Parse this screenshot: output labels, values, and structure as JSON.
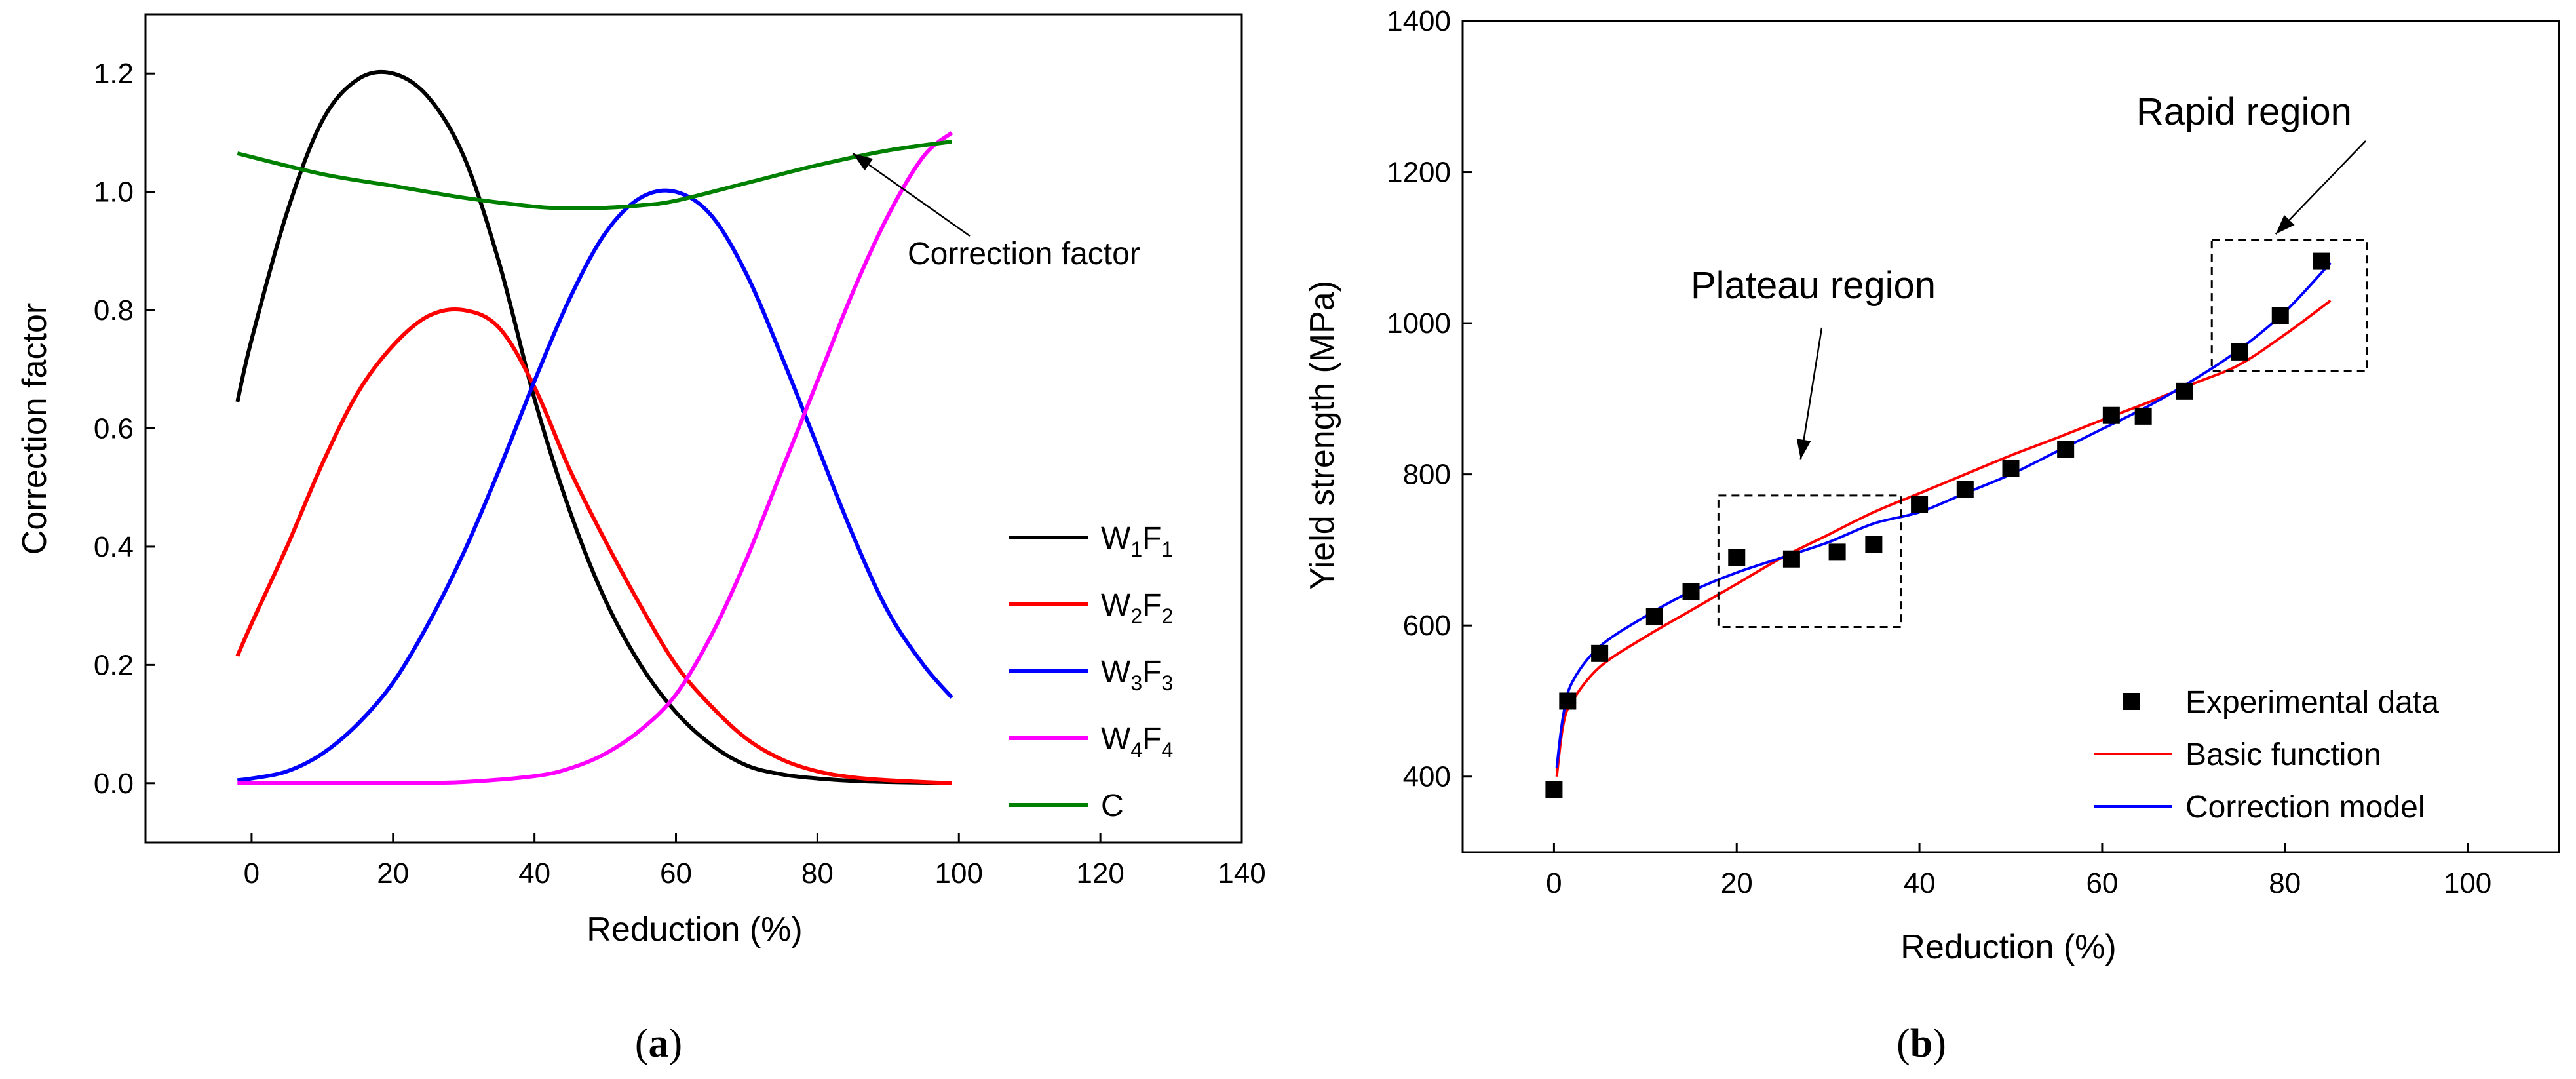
{
  "figure": {
    "panel_a_label": "(a)",
    "panel_b_label": "(b)",
    "panel_a_letter": "a",
    "panel_b_letter": "b"
  },
  "chart_data": [
    {
      "type": "line",
      "panel": "a",
      "xlabel": "Reduction (%)",
      "ylabel": "Correction factor",
      "xlim": [
        -15,
        140
      ],
      "ylim": [
        -0.1,
        1.3
      ],
      "xticks": [
        0,
        20,
        40,
        60,
        80,
        100,
        120,
        140
      ],
      "yticks": [
        0.0,
        0.2,
        0.4,
        0.6,
        0.8,
        1.0,
        1.2
      ],
      "xtick_labels": [
        "0",
        "20",
        "40",
        "60",
        "80",
        "100",
        "120",
        "140"
      ],
      "ytick_labels": [
        "0.0",
        "0.2",
        "0.4",
        "0.6",
        "0.8",
        "1.0",
        "1.2"
      ],
      "grid": false,
      "legend_position": "bottom-right",
      "series": [
        {
          "name": "W1F1",
          "legend": {
            "base1": "W",
            "sub1": "1",
            "base2": "F",
            "sub2": "1"
          },
          "color": "#000000",
          "x": [
            -2,
            0,
            5,
            10,
            15,
            20,
            25,
            30,
            35,
            40,
            45,
            50,
            55,
            60,
            65,
            70,
            75,
            80,
            85,
            90,
            95,
            99
          ],
          "y": [
            0.645,
            0.75,
            0.965,
            1.12,
            1.19,
            1.2,
            1.16,
            1.06,
            0.88,
            0.65,
            0.46,
            0.31,
            0.2,
            0.12,
            0.065,
            0.03,
            0.015,
            0.008,
            0.004,
            0.002,
            0.001,
            0.0
          ]
        },
        {
          "name": "W2F2",
          "legend": {
            "base1": "W",
            "sub1": "2",
            "base2": "F",
            "sub2": "2"
          },
          "color": "#ff0000",
          "x": [
            -2,
            0,
            5,
            10,
            15,
            20,
            25,
            30,
            35,
            40,
            45,
            50,
            55,
            60,
            65,
            70,
            75,
            80,
            85,
            90,
            95,
            99
          ],
          "y": [
            0.215,
            0.27,
            0.4,
            0.54,
            0.66,
            0.74,
            0.79,
            0.8,
            0.77,
            0.67,
            0.53,
            0.41,
            0.3,
            0.2,
            0.13,
            0.075,
            0.04,
            0.02,
            0.01,
            0.005,
            0.002,
            0.0
          ]
        },
        {
          "name": "W3F3",
          "legend": {
            "base1": "W",
            "sub1": "3",
            "base2": "F",
            "sub2": "3"
          },
          "color": "#0000ff",
          "x": [
            -2,
            0,
            5,
            10,
            15,
            20,
            25,
            30,
            35,
            40,
            45,
            50,
            55,
            60,
            65,
            70,
            75,
            80,
            85,
            90,
            95,
            99
          ],
          "y": [
            0.005,
            0.008,
            0.02,
            0.05,
            0.1,
            0.17,
            0.27,
            0.39,
            0.53,
            0.68,
            0.82,
            0.93,
            0.99,
            1.0,
            0.96,
            0.86,
            0.72,
            0.57,
            0.42,
            0.29,
            0.2,
            0.145
          ]
        },
        {
          "name": "W4F4",
          "legend": {
            "base1": "W",
            "sub1": "4",
            "base2": "F",
            "sub2": "4"
          },
          "color": "#ff00ff",
          "x": [
            -2,
            0,
            10,
            20,
            30,
            40,
            45,
            50,
            55,
            60,
            65,
            70,
            75,
            80,
            85,
            90,
            95,
            99
          ],
          "y": [
            0.0,
            0.0,
            0.0,
            0.0,
            0.002,
            0.012,
            0.025,
            0.05,
            0.09,
            0.15,
            0.25,
            0.38,
            0.53,
            0.68,
            0.83,
            0.96,
            1.06,
            1.1
          ]
        },
        {
          "name": "C",
          "legend": {
            "base1": "C",
            "sub1": "",
            "base2": "",
            "sub2": ""
          },
          "color": "#008000",
          "x": [
            -2,
            10,
            20,
            30,
            40,
            45,
            50,
            55,
            60,
            70,
            80,
            90,
            99
          ],
          "y": [
            1.065,
            1.03,
            1.01,
            0.99,
            0.975,
            0.972,
            0.973,
            0.977,
            0.985,
            1.015,
            1.045,
            1.07,
            1.085
          ]
        }
      ],
      "annotations": [
        {
          "text": "Correction factor",
          "arrow_to": [
            85,
            1.065
          ],
          "text_at": [
            96,
            0.9
          ]
        }
      ]
    },
    {
      "type": "line+scatter",
      "panel": "b",
      "xlabel": "Reduction (%)",
      "ylabel": "Yield strength (MPa)",
      "xlim": [
        -10,
        110
      ],
      "ylim": [
        300,
        1400
      ],
      "xticks": [
        0,
        20,
        40,
        60,
        80,
        100
      ],
      "yticks": [
        400,
        600,
        800,
        1000,
        1200,
        1400
      ],
      "xtick_labels": [
        "0",
        "20",
        "40",
        "60",
        "80",
        "100"
      ],
      "ytick_labels": [
        "400",
        "600",
        "800",
        "1000",
        "1200",
        "1400"
      ],
      "grid": false,
      "legend_position": "bottom-right",
      "legend": [
        "Experimental data",
        "Basic function",
        "Correction model"
      ],
      "experimental": {
        "name": "Experimental data",
        "color": "#000000",
        "x": [
          0,
          1.5,
          5,
          11,
          15,
          20,
          26,
          31,
          35,
          40,
          45,
          50,
          56,
          61,
          64.5,
          69,
          75,
          79.5,
          84
        ],
        "y": [
          383,
          500,
          563,
          612,
          645,
          690,
          688,
          697,
          707,
          760,
          780,
          808,
          833,
          878,
          877,
          910,
          962,
          1010,
          1082
        ]
      },
      "series": [
        {
          "name": "Basic function",
          "color": "#ff0000",
          "x": [
            0.3,
            1,
            2,
            5,
            10,
            15,
            20,
            25,
            30,
            35,
            40,
            45,
            50,
            55,
            60,
            65,
            70,
            75,
            80,
            85
          ],
          "y": [
            400,
            468,
            500,
            545,
            585,
            620,
            655,
            690,
            720,
            750,
            775,
            800,
            825,
            848,
            872,
            895,
            920,
            945,
            985,
            1030
          ]
        },
        {
          "name": "Correction model",
          "color": "#0000ff",
          "x": [
            0.3,
            1,
            2,
            5,
            10,
            15,
            20,
            25,
            30,
            35,
            40,
            45,
            50,
            55,
            60,
            65,
            70,
            75,
            80,
            85
          ],
          "y": [
            412,
            480,
            525,
            572,
            612,
            645,
            670,
            690,
            710,
            735,
            750,
            775,
            800,
            830,
            860,
            890,
            925,
            965,
            1015,
            1080
          ]
        }
      ],
      "annotations": [
        {
          "text": "Plateau region",
          "box": {
            "x": [
              18,
              38
            ],
            "y": [
              598,
              772
            ]
          },
          "arrow_to": [
            27,
            820
          ],
          "text_at": [
            26,
            1045
          ]
        },
        {
          "text": "Rapid region",
          "box": {
            "x": [
              72,
              89
            ],
            "y": [
              937,
              1110
            ]
          },
          "arrow_to": [
            79,
            1118
          ],
          "text_at": [
            88,
            1280
          ]
        }
      ]
    }
  ]
}
